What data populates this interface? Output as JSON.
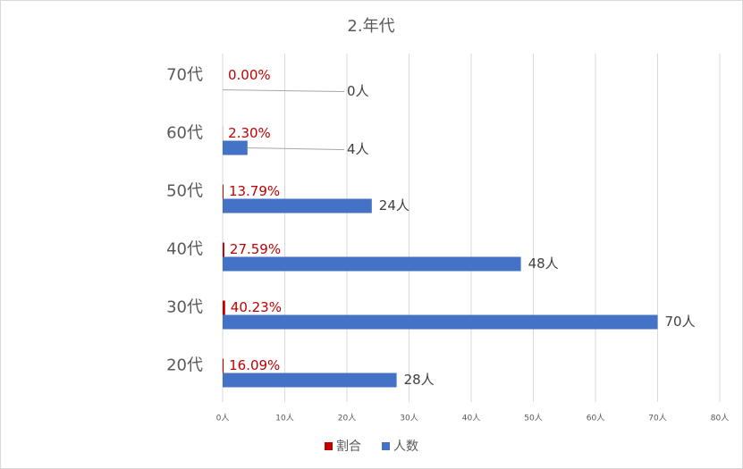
{
  "chart_data": {
    "type": "hbar",
    "title": "2.年代",
    "categories": [
      "20代",
      "30代",
      "40代",
      "50代",
      "60代",
      "70代"
    ],
    "series": [
      {
        "name": "割合",
        "color": "#c00000",
        "values": [
          0.1609,
          0.4023,
          0.2759,
          0.1379,
          0.023,
          0
        ],
        "value_labels": [
          "16.09%",
          "40.23%",
          "27.59%",
          "13.79%",
          "2.30%",
          "0.00%"
        ]
      },
      {
        "name": "人数",
        "color": "#4472c4",
        "values": [
          28,
          70,
          48,
          24,
          4,
          0
        ],
        "value_labels": [
          "28人",
          "70人",
          "48人",
          "24人",
          "4人",
          "0人"
        ]
      }
    ],
    "xlim": [
      0,
      80
    ],
    "xticks": [
      {
        "value": 0,
        "label": "0人"
      },
      {
        "value": 10,
        "label": "10人"
      },
      {
        "value": 20,
        "label": "20人"
      },
      {
        "value": 30,
        "label": "30人"
      },
      {
        "value": 40,
        "label": "40人"
      },
      {
        "value": 50,
        "label": "50人"
      },
      {
        "value": 60,
        "label": "60人"
      },
      {
        "value": 70,
        "label": "70人"
      },
      {
        "value": 80,
        "label": "80人"
      }
    ],
    "grid": true,
    "legend": "bottom"
  }
}
